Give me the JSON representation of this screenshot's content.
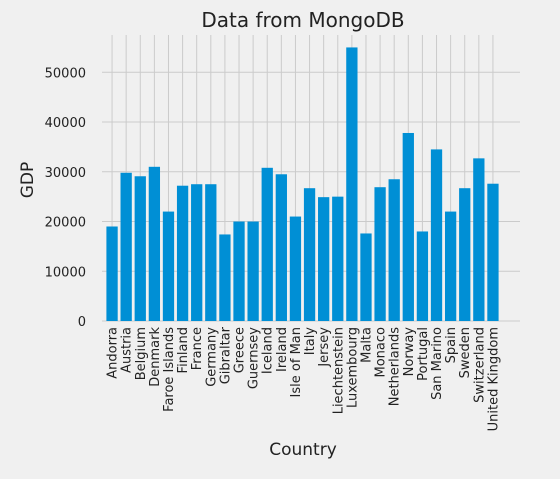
{
  "colors": {
    "background": "#f0f0f0",
    "bar": "#008fd5",
    "grid": "#cbcbcb",
    "text": "#222222"
  },
  "chart_data": {
    "type": "bar",
    "title": "Data from MongoDB",
    "xlabel": "Country",
    "ylabel": "GDP",
    "ylim": [
      0,
      57500
    ],
    "yticks": [
      0,
      10000,
      20000,
      30000,
      40000,
      50000
    ],
    "grid": true,
    "categories": [
      "Andorra",
      "Austria",
      "Belgium",
      "Denmark",
      "Faroe Islands",
      "Finland",
      "France",
      "Germany",
      "Gibraltar",
      "Greece",
      "Guernsey",
      "Iceland",
      "Ireland",
      "Isle of Man",
      "Italy",
      "Jersey",
      "Liechtenstein",
      "Luxembourg",
      "Malta",
      "Monaco",
      "Netherlands",
      "Norway",
      "Portugal",
      "San Marino",
      "Spain",
      "Sweden",
      "Switzerland",
      "United Kingdom"
    ],
    "values": [
      19000,
      29800,
      29100,
      31000,
      22000,
      27200,
      27500,
      27500,
      17400,
      20000,
      20000,
      30800,
      29500,
      21000,
      26700,
      24900,
      25000,
      55000,
      17600,
      26900,
      28500,
      37800,
      18000,
      34500,
      22000,
      26700,
      32700,
      27600
    ]
  }
}
